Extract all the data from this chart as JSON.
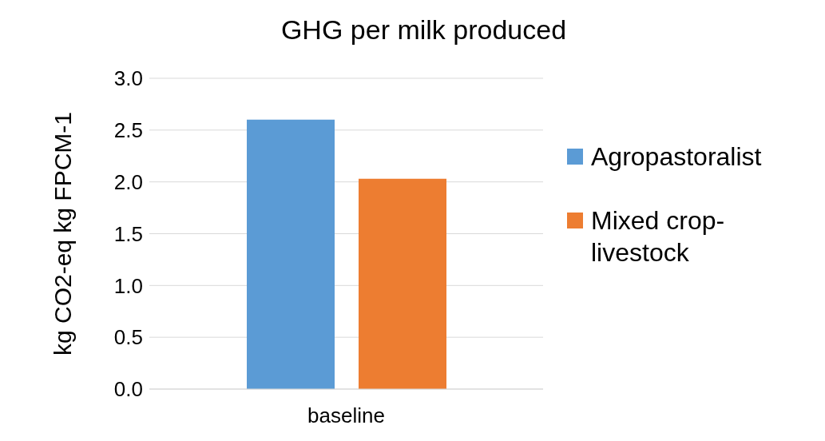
{
  "chart_data": {
    "type": "bar",
    "title": "GHG per milk produced",
    "ylabel": "kg CO2-eq kg FPCM-1",
    "categories": [
      "baseline"
    ],
    "series": [
      {
        "name": "Agropastoralist",
        "color": "#5b9bd5",
        "values": [
          2.6
        ]
      },
      {
        "name": "Mixed crop-livestock",
        "color": "#ed7d31",
        "values": [
          2.03
        ]
      }
    ],
    "ylim": [
      0,
      3
    ],
    "yticks": [
      {
        "value": 0,
        "label": "0.0"
      },
      {
        "value": 0.5,
        "label": "0.5"
      },
      {
        "value": 1,
        "label": "1.0"
      },
      {
        "value": 1.5,
        "label": "1.5"
      },
      {
        "value": 2,
        "label": "2.0"
      },
      {
        "value": 2.5,
        "label": "2.5"
      },
      {
        "value": 3,
        "label": "3.0"
      }
    ],
    "grid": "y",
    "legend": "right"
  }
}
